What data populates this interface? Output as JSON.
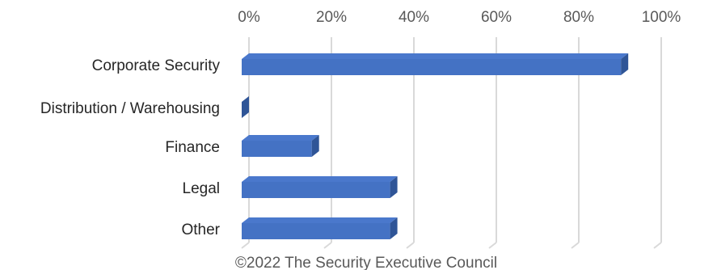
{
  "chart_data": {
    "type": "bar",
    "orientation": "horizontal",
    "style": "3d",
    "title": "",
    "xlabel": "",
    "ylabel": "",
    "categories": [
      "Corporate Security",
      "Distribution / Warehousing",
      "Finance",
      "Legal",
      "Other"
    ],
    "values": [
      92,
      0,
      17,
      36,
      36
    ],
    "xlim": [
      0,
      100
    ],
    "x_ticks": [
      "0%",
      "20%",
      "40%",
      "60%",
      "80%",
      "100%"
    ],
    "x_tick_values": [
      0,
      20,
      40,
      60,
      80,
      100
    ],
    "axis_position": "top",
    "grid": true,
    "legend": "none",
    "bar_color": "#4472c4",
    "bar_side_color": "#2f5597",
    "bar_top_color": "#4a78cc",
    "grid_color": "#d9d9d9"
  },
  "footer": {
    "copyright": "©2022 The Security Executive Council"
  }
}
